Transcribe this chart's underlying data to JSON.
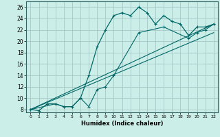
{
  "xlabel": "Humidex (Indice chaleur)",
  "background_color": "#cceee8",
  "grid_color": "#aacccc",
  "line_color": "#006666",
  "xlim": [
    -0.5,
    22.5
  ],
  "ylim": [
    7.5,
    27
  ],
  "xticks": [
    0,
    1,
    2,
    3,
    4,
    5,
    6,
    7,
    8,
    9,
    10,
    11,
    12,
    13,
    14,
    15,
    16,
    17,
    18,
    19,
    20,
    21,
    22
  ],
  "yticks": [
    8,
    10,
    12,
    14,
    16,
    18,
    20,
    22,
    24,
    26
  ],
  "main_x": [
    0,
    1,
    2,
    3,
    4,
    5,
    6,
    7,
    8,
    9,
    10,
    11,
    12,
    13,
    14,
    15,
    16,
    17,
    18,
    19,
    20,
    21,
    22
  ],
  "main_y": [
    8.0,
    7.8,
    9.0,
    9.0,
    8.5,
    8.5,
    10.0,
    14.0,
    19.0,
    22.0,
    24.5,
    25.0,
    24.5,
    26.0,
    25.0,
    23.0,
    24.5,
    23.5,
    23.0,
    21.0,
    22.5,
    22.5,
    23.0
  ],
  "line2_x": [
    0,
    3,
    4,
    5,
    6,
    7,
    8,
    9,
    10,
    13,
    16,
    19,
    20,
    21,
    22
  ],
  "line2_y": [
    8.0,
    9.0,
    8.5,
    8.5,
    10.0,
    8.5,
    11.5,
    12.0,
    14.0,
    21.5,
    22.5,
    20.5,
    21.5,
    22.0,
    23.0
  ],
  "line3_x": [
    0,
    22
  ],
  "line3_y": [
    8.0,
    23.0
  ],
  "line4_x": [
    0,
    22
  ],
  "line4_y": [
    8.0,
    21.5
  ]
}
